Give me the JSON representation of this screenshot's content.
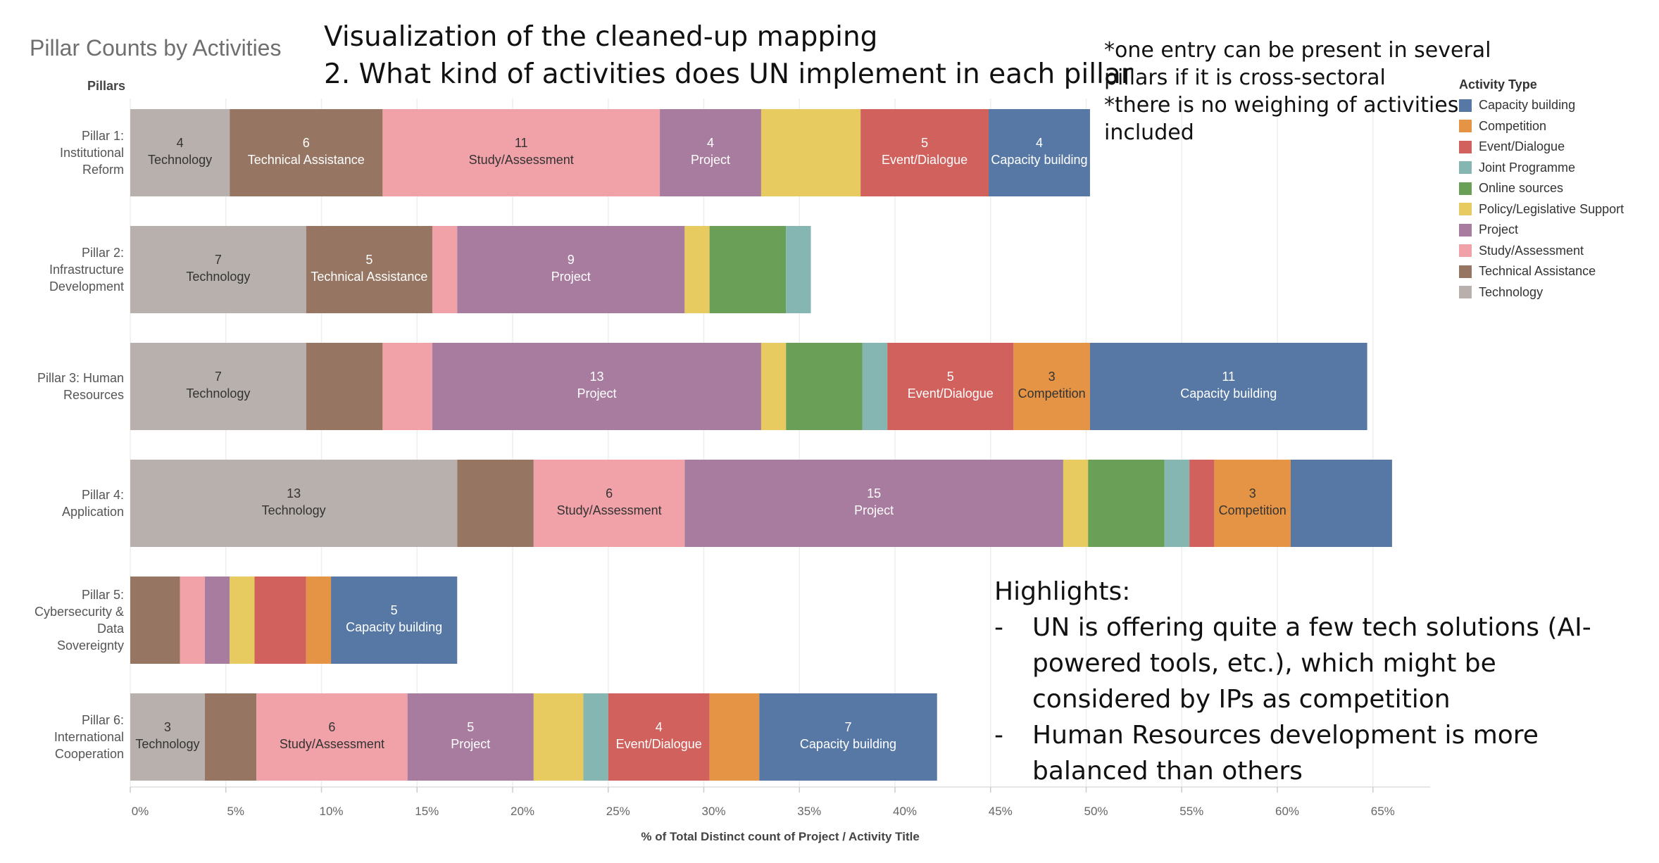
{
  "chart_title": "Pillar Counts by Activities",
  "viz_title": [
    "Visualization of the cleaned-up mapping",
    "2. What kind of activities does UN implement in each pillar"
  ],
  "notes": [
    "*one entry can be present in several pillars if it is cross-sectoral",
    "*there is no weighing of activities included"
  ],
  "highlights": {
    "title": "Highlights:",
    "items": [
      "UN is offering quite a few tech solutions (AI-powered tools, etc.), which might be considered by IPs as competition",
      "Human Resources development is more balanced than others"
    ]
  },
  "chart_data": {
    "type": "bar",
    "orientation": "horizontal",
    "stacked": true,
    "row_header": "Pillars",
    "xlabel": "% of Total Distinct count of Project / Activity Title",
    "xlim": [
      0,
      68
    ],
    "xticks": [
      "0%",
      "5%",
      "10%",
      "15%",
      "20%",
      "25%",
      "30%",
      "35%",
      "40%",
      "45%",
      "50%",
      "55%",
      "60%",
      "65%"
    ],
    "grid": true,
    "legend_title": "Activity Type",
    "legend_position": "right",
    "legend": [
      {
        "name": "Capacity building",
        "color": "#5778a4"
      },
      {
        "name": "Competition",
        "color": "#e49444"
      },
      {
        "name": "Event/Dialogue",
        "color": "#d1615d"
      },
      {
        "name": "Joint Programme",
        "color": "#85b6b2"
      },
      {
        "name": "Online sources",
        "color": "#6a9f58"
      },
      {
        "name": "Policy/Legislative Support",
        "color": "#e7ca60"
      },
      {
        "name": "Project",
        "color": "#a87c9f"
      },
      {
        "name": "Study/Assessment",
        "color": "#f1a2a9"
      },
      {
        "name": "Technical Assistance",
        "color": "#967662"
      },
      {
        "name": "Technology",
        "color": "#b8b0ac"
      }
    ],
    "rows": [
      {
        "label": [
          "Pillar 1:",
          "Institutional",
          "Reform"
        ],
        "segments": [
          {
            "type": "Technology",
            "value": 5.2,
            "count": "4"
          },
          {
            "type": "Technical Assistance",
            "value": 8.0,
            "count": "6"
          },
          {
            "type": "Study/Assessment",
            "value": 14.5,
            "count": "11"
          },
          {
            "type": "Project",
            "value": 5.3,
            "count": "4"
          },
          {
            "type": "Policy/Legislative Support",
            "value": 5.2,
            "count": ""
          },
          {
            "type": "Event/Dialogue",
            "value": 6.7,
            "count": "5"
          },
          {
            "type": "Capacity building",
            "value": 5.3,
            "count": "4"
          }
        ]
      },
      {
        "label": [
          "Pillar 2:",
          "Infrastructure",
          "Development"
        ],
        "segments": [
          {
            "type": "Technology",
            "value": 9.2,
            "count": "7"
          },
          {
            "type": "Technical Assistance",
            "value": 6.6,
            "count": "5"
          },
          {
            "type": "Study/Assessment",
            "value": 1.3,
            "count": ""
          },
          {
            "type": "Project",
            "value": 11.9,
            "count": "9"
          },
          {
            "type": "Policy/Legislative Support",
            "value": 1.3,
            "count": ""
          },
          {
            "type": "Online sources",
            "value": 4.0,
            "count": ""
          },
          {
            "type": "Joint Programme",
            "value": 1.3,
            "count": ""
          }
        ]
      },
      {
        "label": [
          "Pillar 3: Human",
          "Resources"
        ],
        "segments": [
          {
            "type": "Technology",
            "value": 9.2,
            "count": "7"
          },
          {
            "type": "Technical Assistance",
            "value": 4.0,
            "count": ""
          },
          {
            "type": "Study/Assessment",
            "value": 2.6,
            "count": ""
          },
          {
            "type": "Project",
            "value": 17.2,
            "count": "13"
          },
          {
            "type": "Policy/Legislative Support",
            "value": 1.3,
            "count": ""
          },
          {
            "type": "Online sources",
            "value": 4.0,
            "count": ""
          },
          {
            "type": "Joint Programme",
            "value": 1.3,
            "count": ""
          },
          {
            "type": "Event/Dialogue",
            "value": 6.6,
            "count": "5"
          },
          {
            "type": "Competition",
            "value": 4.0,
            "count": "3"
          },
          {
            "type": "Capacity building",
            "value": 14.5,
            "count": "11"
          }
        ]
      },
      {
        "label": [
          "Pillar 4:",
          "Application"
        ],
        "segments": [
          {
            "type": "Technology",
            "value": 17.1,
            "count": "13"
          },
          {
            "type": "Technical Assistance",
            "value": 4.0,
            "count": ""
          },
          {
            "type": "Study/Assessment",
            "value": 7.9,
            "count": "6"
          },
          {
            "type": "Project",
            "value": 19.8,
            "count": "15"
          },
          {
            "type": "Policy/Legislative Support",
            "value": 1.3,
            "count": ""
          },
          {
            "type": "Online sources",
            "value": 4.0,
            "count": ""
          },
          {
            "type": "Joint Programme",
            "value": 1.3,
            "count": ""
          },
          {
            "type": "Event/Dialogue",
            "value": 1.3,
            "count": ""
          },
          {
            "type": "Competition",
            "value": 4.0,
            "count": "3"
          },
          {
            "type": "Capacity building",
            "value": 5.3,
            "count": ""
          }
        ]
      },
      {
        "label": [
          "Pillar 5:",
          "Cybersecurity &",
          "Data",
          "Sovereignty"
        ],
        "segments": [
          {
            "type": "Technical Assistance",
            "value": 2.6,
            "count": ""
          },
          {
            "type": "Study/Assessment",
            "value": 1.3,
            "count": ""
          },
          {
            "type": "Project",
            "value": 1.3,
            "count": ""
          },
          {
            "type": "Policy/Legislative Support",
            "value": 1.3,
            "count": ""
          },
          {
            "type": "Event/Dialogue",
            "value": 2.7,
            "count": ""
          },
          {
            "type": "Competition",
            "value": 1.3,
            "count": ""
          },
          {
            "type": "Capacity building",
            "value": 6.6,
            "count": "5"
          }
        ]
      },
      {
        "label": [
          "Pillar 6:",
          "International",
          "Cooperation"
        ],
        "segments": [
          {
            "type": "Technology",
            "value": 3.9,
            "count": "3"
          },
          {
            "type": "Technical Assistance",
            "value": 2.7,
            "count": ""
          },
          {
            "type": "Study/Assessment",
            "value": 7.9,
            "count": "6"
          },
          {
            "type": "Project",
            "value": 6.6,
            "count": "5"
          },
          {
            "type": "Policy/Legislative Support",
            "value": 2.6,
            "count": ""
          },
          {
            "type": "Joint Programme",
            "value": 1.3,
            "count": ""
          },
          {
            "type": "Event/Dialogue",
            "value": 5.3,
            "count": "4"
          },
          {
            "type": "Competition",
            "value": 2.6,
            "count": ""
          },
          {
            "type": "Capacity building",
            "value": 9.3,
            "count": "7"
          }
        ]
      }
    ]
  }
}
